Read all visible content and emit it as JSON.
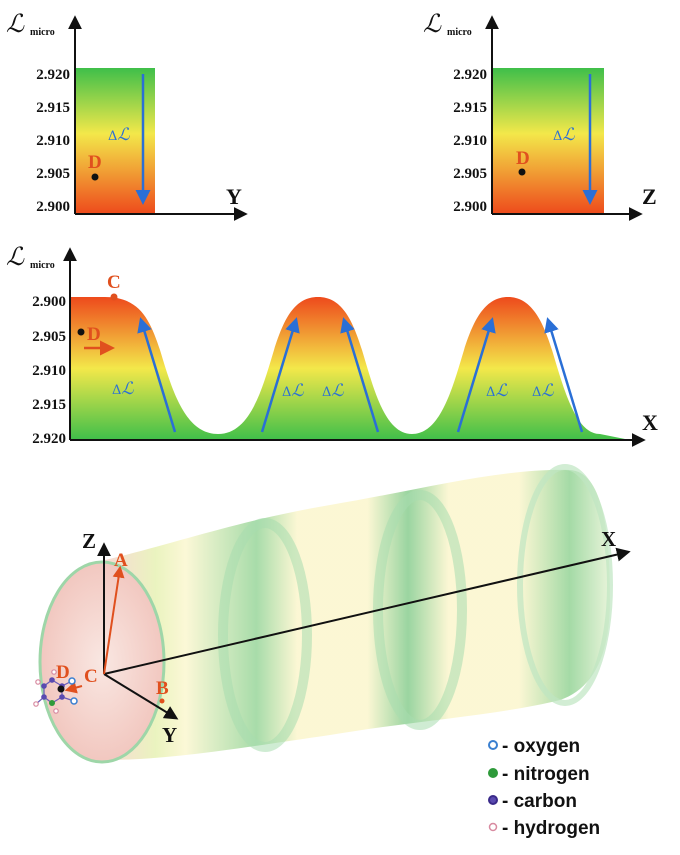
{
  "figure": {
    "y_axis_symbol": "ℒ",
    "y_axis_subscript": "micro",
    "delta_label": "ΔℒΔ",
    "delta_symbol": "ℒ",
    "point_D": "D",
    "point_C": "C",
    "point_A": "A",
    "point_B": "B"
  },
  "panel_y": {
    "axis_letter": "Y",
    "ticks": [
      "2.920",
      "2.915",
      "2.910",
      "2.905",
      "2.900"
    ]
  },
  "panel_z": {
    "axis_letter": "Z",
    "ticks": [
      "2.920",
      "2.915",
      "2.910",
      "2.905",
      "2.900"
    ]
  },
  "panel_x": {
    "axis_letter": "X",
    "ticks": [
      "2.900",
      "2.905",
      "2.910",
      "2.915",
      "2.920"
    ]
  },
  "cylinder": {
    "axis_x": "X",
    "axis_y": "Y",
    "axis_z": "Z"
  },
  "legend": [
    {
      "label": "- oxygen",
      "color": "#3a7fd0",
      "fill": "#ffffff"
    },
    {
      "label": "- nitrogen",
      "color": "#2e9a3a",
      "fill": "#2e9a3a"
    },
    {
      "label": "- carbon",
      "color": "#3a2a8a",
      "fill": "#5a4ab0"
    },
    {
      "label": "- hydrogen",
      "color": "#d88aa0",
      "fill": "#ffffff"
    }
  ],
  "colors": {
    "high": "#ee4a1c",
    "mid": "#f3e84a",
    "low": "#3fbf4a",
    "arrow": "#2a6fd6",
    "label_orange": "#e0501e"
  }
}
